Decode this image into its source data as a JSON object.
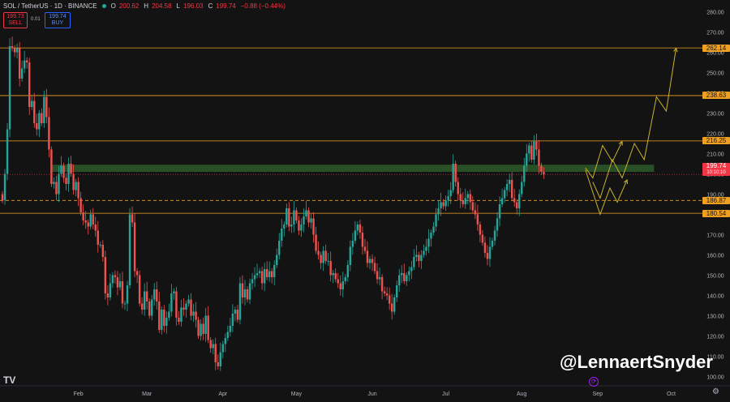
{
  "header": {
    "symbol": "SOL / TetherUS · 1D · BINANCE",
    "o_label": "O",
    "o_value": "200.62",
    "h_label": "H",
    "h_value": "204.58",
    "l_label": "L",
    "l_value": "196.03",
    "c_label": "C",
    "c_value": "199.74",
    "change": "−0.88 (−0.44%)",
    "status_color": "#26a69a"
  },
  "trade": {
    "sell_price": "199.73",
    "sell_label": "SELL",
    "spread": "0.01",
    "buy_price": "199.74",
    "buy_label": "BUY"
  },
  "price_labels": {
    "r1": "262.14",
    "r2": "238.63",
    "r3": "216.25",
    "current": "199.74",
    "countdown": "10:10:10",
    "s1": "186.87",
    "s2": "180.54"
  },
  "credit": "@LennaertSnyder",
  "logo": "TV",
  "colors": {
    "up": "#26a69a",
    "down": "#ef5350",
    "level": "#f0a020",
    "zone": "#2e5a2a",
    "projection": "#c9b22e"
  },
  "chart_data": {
    "type": "candlestick",
    "title": "",
    "xlabel": "",
    "ylabel": "",
    "ylim": [
      96,
      284
    ],
    "y_ticks": [
      100,
      110,
      120,
      130,
      140,
      150,
      160,
      170,
      180,
      190,
      200,
      210,
      220,
      230,
      240,
      250,
      260,
      270,
      280
    ],
    "x_ticks": [
      {
        "label": "Feb",
        "day": 31
      },
      {
        "label": "Mar",
        "day": 59
      },
      {
        "label": "Apr",
        "day": 90
      },
      {
        "label": "May",
        "day": 120
      },
      {
        "label": "Jun",
        "day": 151
      },
      {
        "label": "Jul",
        "day": 181
      },
      {
        "label": "Aug",
        "day": 212
      },
      {
        "label": "Sep",
        "day": 243
      },
      {
        "label": "Oct",
        "day": 273
      }
    ],
    "closes": [
      187,
      200,
      222,
      263,
      262,
      260,
      262,
      247,
      252,
      256,
      255,
      233,
      236,
      225,
      222,
      230,
      225,
      238,
      228,
      212,
      195,
      196,
      190,
      200,
      204,
      198,
      195,
      205,
      200,
      192,
      196,
      188,
      181,
      177,
      176,
      174,
      180,
      175,
      172,
      165,
      165,
      159,
      141,
      139,
      146,
      150,
      149,
      144,
      147,
      136,
      136,
      145,
      180,
      176,
      152,
      150,
      136,
      133,
      142,
      137,
      130,
      138,
      143,
      137,
      123,
      133,
      125,
      129,
      132,
      141,
      142,
      129,
      127,
      134,
      133,
      136,
      138,
      130,
      132,
      128,
      120,
      126,
      121,
      130,
      118,
      114,
      116,
      107,
      105,
      112,
      116,
      119,
      122,
      125,
      131,
      133,
      128,
      146,
      139,
      143,
      138,
      146,
      148,
      150,
      151,
      152,
      146,
      153,
      149,
      152,
      149,
      155,
      160,
      167,
      173,
      175,
      183,
      174,
      175,
      182,
      177,
      172,
      175,
      179,
      182,
      176,
      178,
      170,
      162,
      160,
      156,
      162,
      157,
      157,
      150,
      151,
      148,
      146,
      143,
      147,
      149,
      155,
      164,
      167,
      172,
      175,
      171,
      164,
      162,
      156,
      158,
      156,
      152,
      148,
      149,
      142,
      141,
      140,
      136,
      132,
      139,
      145,
      150,
      151,
      147,
      150,
      152,
      154,
      159,
      160,
      157,
      160,
      162,
      164,
      168,
      171,
      174,
      180,
      183,
      186,
      184,
      187,
      189,
      192,
      205,
      196,
      190,
      187,
      185,
      188,
      190,
      186,
      182,
      180,
      175,
      170,
      166,
      161,
      158,
      164,
      167,
      172,
      178,
      185,
      188,
      192,
      195,
      197,
      188,
      186,
      183,
      190,
      196,
      204,
      210,
      214,
      207,
      216,
      212,
      204,
      201,
      199.74
    ],
    "levels": [
      262.14,
      238.63,
      216.25,
      186.87,
      180.54
    ],
    "zone": [
      201,
      204.5
    ],
    "projection_paths": [
      [
        [
          241,
          196
        ],
        [
          244,
          188
        ],
        [
          249,
          207
        ],
        [
          253,
          198
        ],
        [
          258,
          215
        ],
        [
          262,
          207
        ],
        [
          267,
          238
        ],
        [
          271,
          231
        ],
        [
          275,
          262
        ]
      ],
      [
        [
          238,
          203
        ],
        [
          241,
          198
        ],
        [
          245,
          214
        ],
        [
          249,
          206
        ],
        [
          253,
          216
        ]
      ],
      [
        [
          238,
          202
        ],
        [
          244,
          180
        ],
        [
          248,
          193
        ],
        [
          251,
          186
        ],
        [
          255,
          197
        ]
      ]
    ]
  }
}
